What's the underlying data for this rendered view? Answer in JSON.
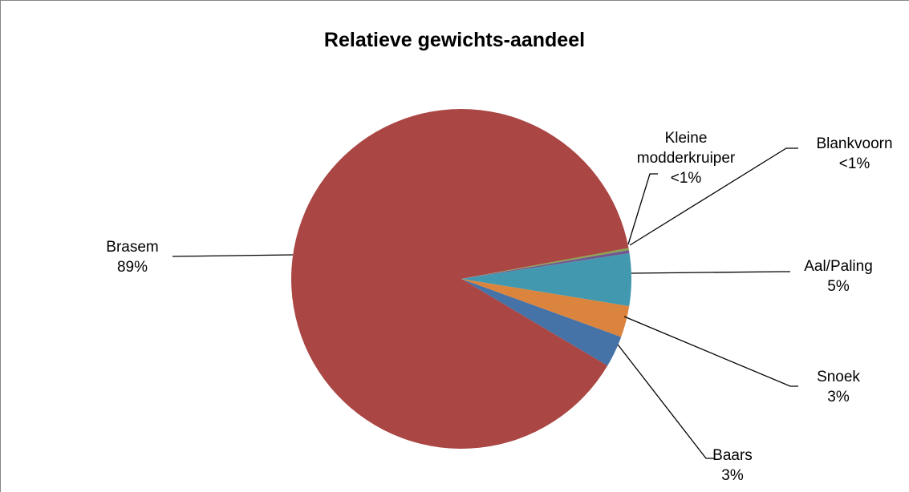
{
  "chart_data": {
    "type": "pie",
    "title": "Relatieve gewichts-aandeel",
    "categories": [
      "Baars",
      "Brasem",
      "Kleine modderkruiper",
      "Blankvoorn",
      "Aal/Paling",
      "Snoek"
    ],
    "values": [
      3,
      89,
      0.2,
      0.3,
      5,
      3
    ],
    "value_labels": [
      "3%",
      "89%",
      "<1%",
      "<1%",
      "5%",
      "3%"
    ],
    "colors": [
      "#4572a7",
      "#aa4643",
      "#89a54e",
      "#71588f",
      "#4198af",
      "#db843d"
    ]
  }
}
